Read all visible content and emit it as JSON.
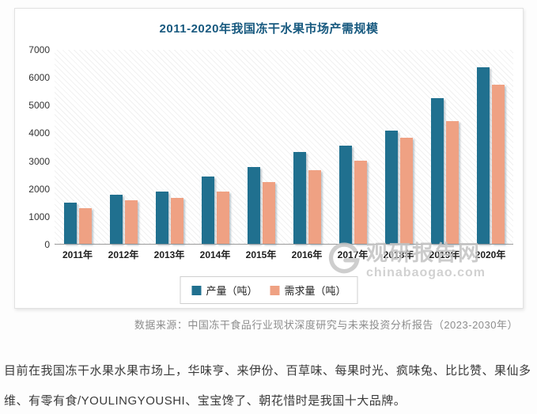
{
  "chart_data": {
    "type": "bar",
    "title": "2011-2020年我国冻干水果市场产需规模",
    "categories": [
      "2011年",
      "2012年",
      "2013年",
      "2014年",
      "2015年",
      "2016年",
      "2017年",
      "2018年",
      "2019年",
      "2020年"
    ],
    "series": [
      {
        "name": "产量（吨）",
        "color": "#20708f",
        "values": [
          1500,
          1760,
          1880,
          2420,
          2780,
          3320,
          3540,
          4100,
          5270,
          6380
        ]
      },
      {
        "name": "需求量（吨）",
        "color": "#efa183",
        "values": [
          1300,
          1560,
          1660,
          1880,
          2240,
          2660,
          3000,
          3830,
          4430,
          5740
        ]
      }
    ],
    "xlabel": "",
    "ylabel": "",
    "ylim": [
      0,
      7000
    ],
    "y_ticks": [
      7000,
      6000,
      5000,
      4000,
      3000,
      2000,
      1000,
      0
    ],
    "grid": false,
    "legend_position": "bottom-center"
  },
  "theme": {
    "title_color": "#17597f",
    "production_bar_color": "#20708f",
    "demand_bar_color": "#efa183"
  },
  "watermark": {
    "name": "观研报告网",
    "domain": "chinabaogao.com"
  },
  "source_line": "数据来源：中国冻干食品行业现状深度研究与未来投资分析报告（2023-2030年）",
  "body_text": "目前在我国冻干水果水果市场上，华味亨、来伊份、百草味、每果时光、疯味兔、比比赞、果仙多维、有零有食/YOULINGYOUSHI、宝宝馋了、朝花惜时是我国十大品牌。"
}
